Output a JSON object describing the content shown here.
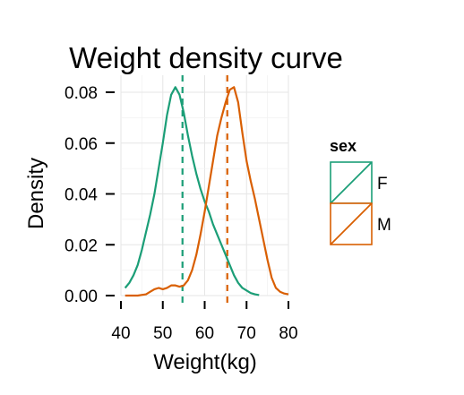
{
  "chart_data": {
    "type": "line",
    "title": "Weight density curve",
    "xlabel": "Weight(kg)",
    "ylabel": "Density",
    "xlim": [
      40,
      80
    ],
    "ylim": [
      0,
      0.085
    ],
    "xticks": [
      40,
      50,
      60,
      70,
      80
    ],
    "xtick_labels": [
      "40",
      "50",
      "60",
      "70",
      "80"
    ],
    "yticks": [
      0,
      0.02,
      0.04,
      0.06,
      0.08
    ],
    "ytick_labels": [
      "0.00",
      "0.02",
      "0.04",
      "0.06",
      "0.08"
    ],
    "grid": true,
    "legend": {
      "title": "sex",
      "position": "right"
    },
    "series": [
      {
        "name": "F",
        "color": "#1b9e77",
        "mean": 54.7,
        "points": [
          [
            41,
            0.003
          ],
          [
            42,
            0.005
          ],
          [
            43,
            0.008
          ],
          [
            44,
            0.012
          ],
          [
            45,
            0.018
          ],
          [
            46,
            0.025
          ],
          [
            47,
            0.032
          ],
          [
            48,
            0.04
          ],
          [
            49,
            0.05
          ],
          [
            50,
            0.06
          ],
          [
            51,
            0.071
          ],
          [
            52,
            0.079
          ],
          [
            53,
            0.082
          ],
          [
            54,
            0.079
          ],
          [
            55,
            0.072
          ],
          [
            56,
            0.063
          ],
          [
            57,
            0.055
          ],
          [
            58,
            0.048
          ],
          [
            59,
            0.042
          ],
          [
            60,
            0.037
          ],
          [
            61,
            0.033
          ],
          [
            62,
            0.028
          ],
          [
            63,
            0.024
          ],
          [
            64,
            0.02
          ],
          [
            65,
            0.016
          ],
          [
            66,
            0.012
          ],
          [
            67,
            0.008
          ],
          [
            68,
            0.005
          ],
          [
            69,
            0.003
          ],
          [
            70,
            0.002
          ],
          [
            71,
            0.001
          ],
          [
            72,
            0.0005
          ],
          [
            73,
            0.0002
          ]
        ]
      },
      {
        "name": "M",
        "color": "#d95f02",
        "mean": 65.4,
        "points": [
          [
            41,
            0.0
          ],
          [
            44,
            0.0
          ],
          [
            46,
            0.0005
          ],
          [
            47,
            0.0015
          ],
          [
            48,
            0.0025
          ],
          [
            49,
            0.003
          ],
          [
            50,
            0.0025
          ],
          [
            51,
            0.003
          ],
          [
            52,
            0.004
          ],
          [
            53,
            0.004
          ],
          [
            54,
            0.0035
          ],
          [
            55,
            0.004
          ],
          [
            56,
            0.006
          ],
          [
            57,
            0.01
          ],
          [
            58,
            0.016
          ],
          [
            59,
            0.024
          ],
          [
            60,
            0.033
          ],
          [
            61,
            0.043
          ],
          [
            62,
            0.053
          ],
          [
            63,
            0.063
          ],
          [
            64,
            0.07
          ],
          [
            65,
            0.076
          ],
          [
            66,
            0.081
          ],
          [
            67,
            0.082
          ],
          [
            68,
            0.076
          ],
          [
            69,
            0.064
          ],
          [
            70,
            0.053
          ],
          [
            71,
            0.045
          ],
          [
            72,
            0.038
          ],
          [
            73,
            0.03
          ],
          [
            74,
            0.022
          ],
          [
            75,
            0.014
          ],
          [
            76,
            0.007
          ],
          [
            77,
            0.003
          ],
          [
            78,
            0.0015
          ],
          [
            79,
            0.0008
          ],
          [
            80,
            0.0005
          ]
        ]
      }
    ]
  }
}
